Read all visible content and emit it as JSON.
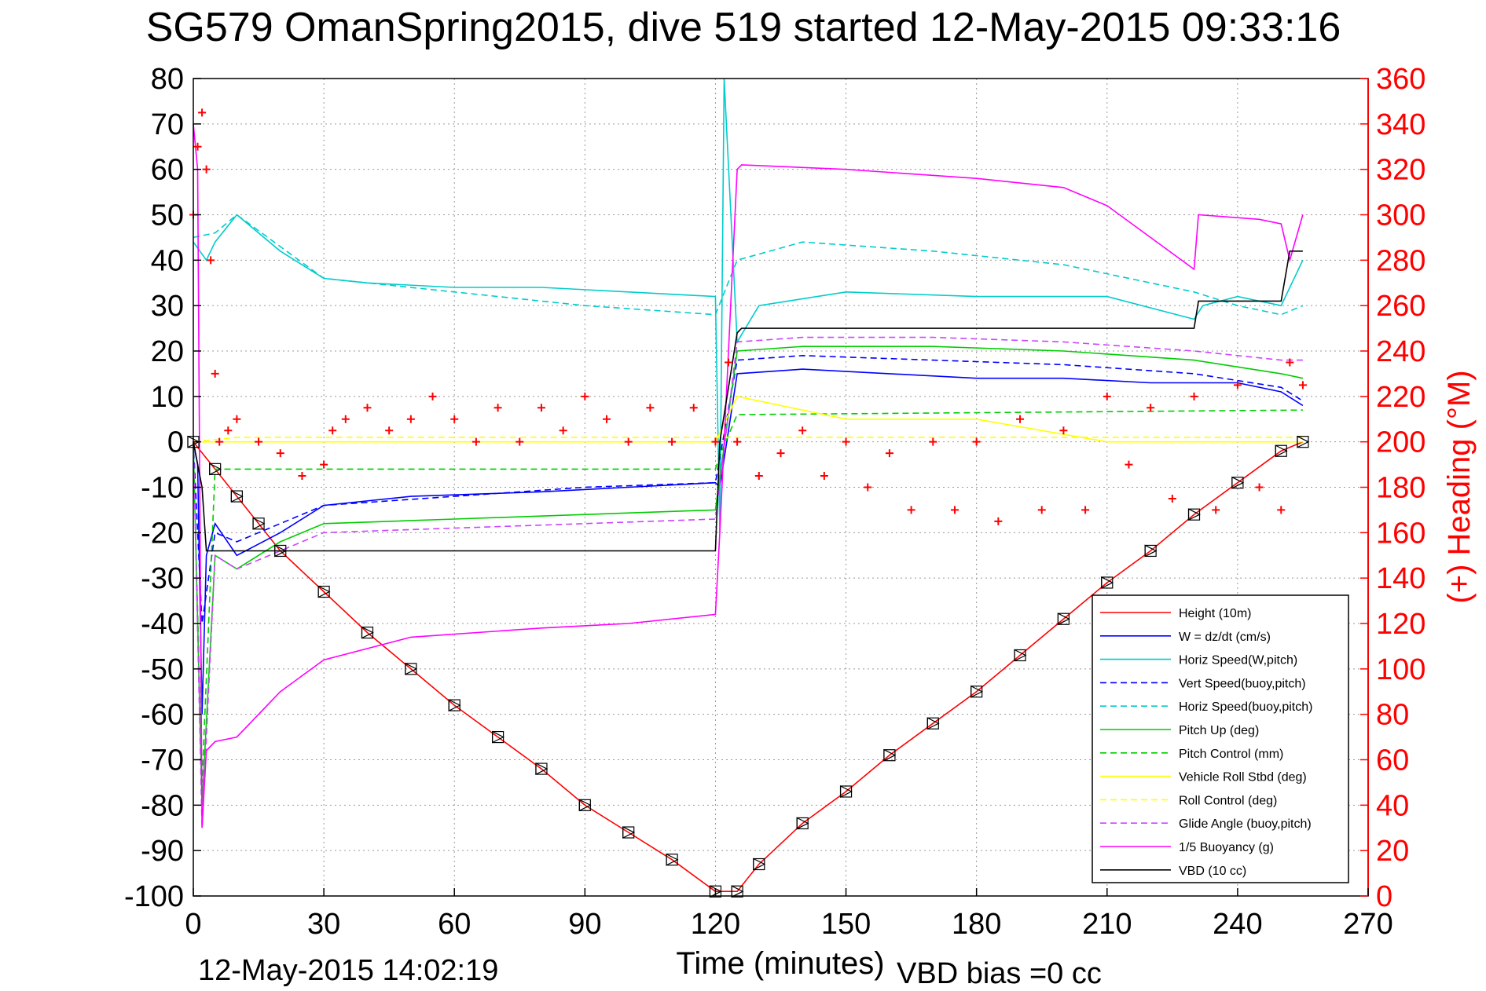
{
  "chart_data": {
    "type": "line",
    "title": "SG579 OmanSpring2015, dive 519 started 12-May-2015 09:33:16",
    "xlabel": "Time (minutes)",
    "ylabel": "",
    "y2label": "(+) Heading (°M)",
    "xlim": [
      0,
      270
    ],
    "ylim": [
      -100,
      80
    ],
    "y2lim": [
      0,
      360
    ],
    "xticks": [
      "0",
      "30",
      "60",
      "90",
      "120",
      "150",
      "180",
      "210",
      "240",
      "270"
    ],
    "yticks": [
      "80",
      "70",
      "60",
      "50",
      "40",
      "30",
      "20",
      "10",
      "0",
      "-10",
      "-20",
      "-30",
      "-40",
      "-50",
      "-60",
      "-70",
      "-80",
      "-90",
      "-100"
    ],
    "y2ticks": [
      "360",
      "340",
      "320",
      "300",
      "280",
      "260",
      "240",
      "220",
      "200",
      "180",
      "160",
      "140",
      "120",
      "100",
      "80",
      "60",
      "40",
      "20",
      "0"
    ],
    "grid": true,
    "legend_position": "lower-right",
    "colors": {
      "axis_right": "#ff0000",
      "text": "#000000"
    },
    "footer_timestamp": "12-May-2015 14:02:19",
    "footer_bias": "VBD bias =0 cc",
    "series": [
      {
        "name": "Height (10m)",
        "color": "#ff0000",
        "style": "solid",
        "marker": "triangle-boxes",
        "x": [
          0,
          5,
          10,
          15,
          20,
          30,
          40,
          50,
          60,
          70,
          80,
          90,
          100,
          110,
          120,
          125,
          130,
          140,
          150,
          160,
          170,
          180,
          190,
          200,
          210,
          220,
          230,
          240,
          250,
          255
        ],
        "y": [
          0,
          -6,
          -12,
          -18,
          -24,
          -33,
          -42,
          -50,
          -58,
          -65,
          -72,
          -80,
          -86,
          -92,
          -99,
          -99,
          -93,
          -84,
          -77,
          -69,
          -62,
          -55,
          -47,
          -39,
          -31,
          -24,
          -16,
          -9,
          -2,
          0
        ]
      },
      {
        "name": "W = dz/dt (cm/s)",
        "color": "#0000ff",
        "style": "solid",
        "x": [
          0,
          1,
          2,
          3,
          5,
          10,
          20,
          30,
          50,
          80,
          100,
          120,
          121,
          125,
          140,
          160,
          180,
          200,
          220,
          240,
          250,
          255
        ],
        "y": [
          0,
          -5,
          -60,
          -25,
          -18,
          -25,
          -20,
          -14,
          -12,
          -11,
          -10,
          -9,
          -10,
          15,
          16,
          15,
          14,
          14,
          13,
          13,
          11,
          8
        ]
      },
      {
        "name": "Horiz Speed(W,pitch)",
        "color": "#00cccc",
        "style": "solid",
        "x": [
          0,
          3,
          5,
          10,
          20,
          30,
          40,
          60,
          80,
          100,
          120,
          121,
          122,
          125,
          130,
          150,
          180,
          210,
          230,
          232,
          240,
          250,
          255
        ],
        "y": [
          44,
          40,
          44,
          50,
          42,
          36,
          35,
          34,
          34,
          33,
          32,
          -20,
          80,
          22,
          30,
          33,
          32,
          32,
          27,
          30,
          32,
          30,
          40
        ]
      },
      {
        "name": "Vert Speed(buoy,pitch)",
        "color": "#0000ff",
        "style": "dashed",
        "x": [
          0,
          2,
          5,
          10,
          30,
          60,
          90,
          120,
          125,
          140,
          170,
          200,
          230,
          250,
          255
        ],
        "y": [
          0,
          -40,
          -20,
          -22,
          -14,
          -12,
          -10,
          -9,
          18,
          19,
          18,
          17,
          15,
          12,
          9
        ]
      },
      {
        "name": "Horiz Speed(buoy,pitch)",
        "color": "#00cccc",
        "style": "dashed",
        "x": [
          0,
          5,
          10,
          20,
          30,
          60,
          90,
          120,
          125,
          140,
          170,
          200,
          230,
          240,
          250,
          255
        ],
        "y": [
          45,
          46,
          50,
          43,
          36,
          33,
          30,
          28,
          40,
          44,
          42,
          39,
          33,
          30,
          28,
          30
        ]
      },
      {
        "name": "Pitch Up (deg)",
        "color": "#00cc00",
        "style": "solid",
        "x": [
          0,
          2,
          5,
          10,
          20,
          30,
          60,
          90,
          120,
          125,
          140,
          170,
          200,
          230,
          250,
          255
        ],
        "y": [
          0,
          -80,
          -25,
          -28,
          -22,
          -18,
          -17,
          -16,
          -15,
          20,
          21,
          21,
          20,
          18,
          15,
          14
        ]
      },
      {
        "name": "Pitch Control (mm)",
        "color": "#00cc00",
        "style": "dashed",
        "x": [
          0,
          2,
          5,
          120,
          121,
          125,
          255
        ],
        "y": [
          0,
          -75,
          -6,
          -6,
          -3,
          6,
          7
        ]
      },
      {
        "name": "Vehicle Roll Stbd (deg)",
        "color": "#ffff00",
        "style": "solid",
        "x": [
          0,
          10,
          30,
          60,
          90,
          120,
          125,
          150,
          180,
          210,
          240,
          255
        ],
        "y": [
          0,
          0,
          0,
          0,
          0,
          0,
          10,
          5,
          5,
          0,
          0,
          0
        ]
      },
      {
        "name": "Roll Control (deg)",
        "color": "#ffff00",
        "style": "dashed",
        "x": [
          0,
          10,
          60,
          120,
          125,
          180,
          255
        ],
        "y": [
          0,
          1,
          1,
          1,
          1,
          1,
          1
        ]
      },
      {
        "name": "Glide Angle (buoy,pitch)",
        "color": "#cc44ff",
        "style": "dashed",
        "x": [
          0,
          2,
          5,
          10,
          30,
          60,
          90,
          120,
          125,
          140,
          170,
          200,
          230,
          250,
          255
        ],
        "y": [
          0,
          -85,
          -25,
          -28,
          -20,
          -19,
          -18,
          -17,
          22,
          23,
          23,
          22,
          20,
          18,
          18
        ]
      },
      {
        "name": "1/5 Buoyancy (g)",
        "color": "#ff00ff",
        "style": "solid",
        "x": [
          0,
          1,
          2,
          3,
          5,
          10,
          20,
          30,
          50,
          80,
          100,
          120,
          121,
          125,
          126,
          150,
          180,
          200,
          210,
          220,
          230,
          231,
          245,
          250,
          252,
          255
        ],
        "y": [
          70,
          60,
          -85,
          -68,
          -66,
          -65,
          -55,
          -48,
          -43,
          -41,
          -40,
          -38,
          -20,
          60,
          61,
          60,
          58,
          56,
          52,
          45,
          38,
          50,
          49,
          48,
          40,
          50
        ]
      },
      {
        "name": "VBD (10 cc)",
        "color": "#000000",
        "style": "solid",
        "x": [
          0,
          2,
          3,
          5,
          120,
          121,
          125,
          126,
          230,
          231,
          250,
          252,
          255
        ],
        "y": [
          0,
          -10,
          -24,
          -24,
          -24,
          0,
          24,
          25,
          25,
          31,
          31,
          42,
          42
        ]
      },
      {
        "name": "Heading",
        "axis": "right",
        "color": "#ff0000",
        "style": "markers",
        "x": [
          0,
          1,
          2,
          3,
          4,
          5,
          6,
          8,
          10,
          15,
          20,
          25,
          30,
          32,
          35,
          40,
          45,
          50,
          55,
          60,
          65,
          70,
          75,
          80,
          85,
          90,
          95,
          100,
          105,
          110,
          115,
          120,
          123,
          125,
          130,
          135,
          140,
          145,
          150,
          155,
          160,
          165,
          170,
          175,
          180,
          185,
          190,
          195,
          200,
          205,
          210,
          215,
          220,
          225,
          230,
          235,
          240,
          245,
          250,
          252,
          255
        ],
        "y": [
          300,
          330,
          345,
          320,
          280,
          230,
          200,
          205,
          210,
          200,
          195,
          185,
          190,
          205,
          210,
          215,
          205,
          210,
          220,
          210,
          200,
          215,
          200,
          215,
          205,
          220,
          210,
          200,
          215,
          200,
          215,
          200,
          235,
          200,
          185,
          195,
          205,
          185,
          200,
          180,
          195,
          170,
          200,
          170,
          200,
          165,
          210,
          170,
          205,
          170,
          220,
          190,
          215,
          175,
          220,
          170,
          225,
          180,
          170,
          235,
          225
        ]
      }
    ]
  }
}
